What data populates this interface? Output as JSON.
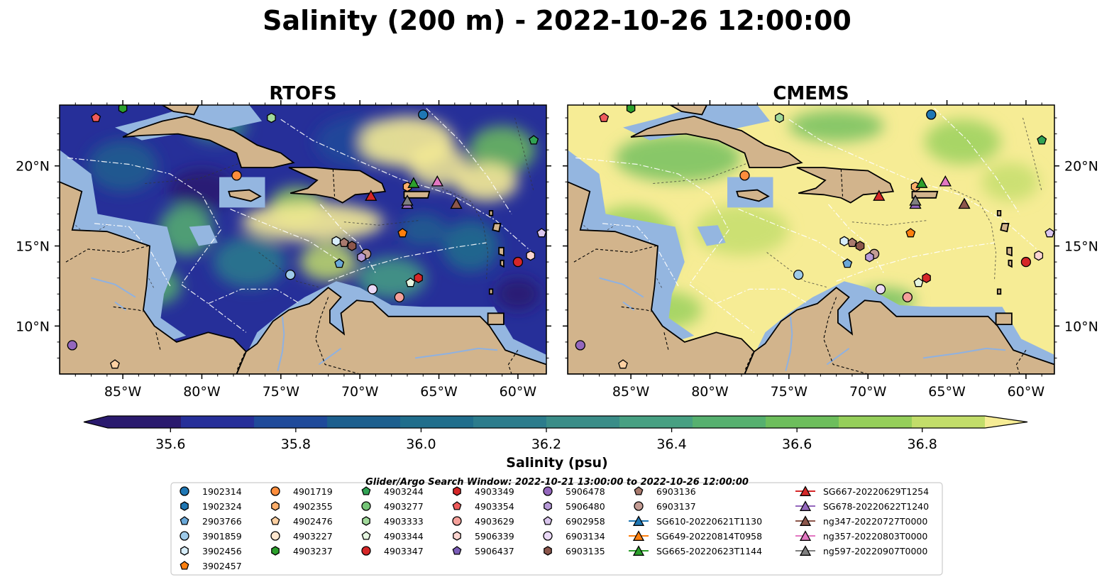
{
  "title": "Salinity (200 m) - 2022-10-26 12:00:00",
  "panels": [
    {
      "name": "RTOFS",
      "variant": "rtofs",
      "left_axis": true
    },
    {
      "name": "CMEMS",
      "variant": "cmems",
      "left_axis": false
    }
  ],
  "map": {
    "lon_labels": [
      "85°W",
      "80°W",
      "75°W",
      "70°W",
      "65°W",
      "60°W"
    ],
    "lon_ticks": [
      -85,
      -80,
      -75,
      -70,
      -65,
      -60
    ],
    "lat_labels": [
      "20°N",
      "15°N",
      "10°N"
    ],
    "lat_ticks": [
      20,
      15,
      10
    ],
    "lon_range": [
      -89,
      -58.2
    ],
    "lat_range": [
      7,
      23.8
    ],
    "colors": {
      "land": "#d2b48c",
      "shelf": "#94b6e0",
      "coast": "#000000"
    }
  },
  "colorbar": {
    "label": "Salinity (psu)",
    "tick_labels": [
      "35.6",
      "35.8",
      "36.0",
      "36.2",
      "36.4",
      "36.6",
      "36.8"
    ],
    "tick_values": [
      35.6,
      35.8,
      36.0,
      36.2,
      36.4,
      36.6,
      36.8
    ],
    "min": 35.5,
    "max": 36.9,
    "colors": [
      "#2a1a6e",
      "#262f99",
      "#1f4a9a",
      "#1c5f8e",
      "#206e8c",
      "#2c7c8c",
      "#3a8d88",
      "#47a082",
      "#56b06f",
      "#6dbe5c",
      "#95cf5a",
      "#c2dd6a",
      "#f6ec95"
    ]
  },
  "search_window": "Glider/Argo Search Window: 2022-10-21 13:00:00 to 2022-10-26 12:00:00",
  "legend": {
    "columns": [
      [
        {
          "label": "1902314",
          "marker": "circle",
          "color": "#1f77b4"
        },
        {
          "label": "1902324",
          "marker": "hexagon",
          "color": "#1f77b4"
        },
        {
          "label": "2903766",
          "marker": "pentagon",
          "color": "#6aa8d8"
        },
        {
          "label": "3901859",
          "marker": "circle",
          "color": "#9ecae9"
        },
        {
          "label": "3902456",
          "marker": "hexagon",
          "color": "#d8eefa"
        },
        {
          "label": "3902457",
          "marker": "pentagon",
          "color": "#ff7f0e"
        }
      ],
      [
        {
          "label": "4901719",
          "marker": "circle",
          "color": "#fd8d3c"
        },
        {
          "label": "4902355",
          "marker": "hexagon",
          "color": "#fdae6b"
        },
        {
          "label": "4902476",
          "marker": "pentagon",
          "color": "#fdd0a2"
        },
        {
          "label": "4903227",
          "marker": "circle",
          "color": "#fee6ce"
        },
        {
          "label": "4903237",
          "marker": "hexagon",
          "color": "#2ca02c"
        }
      ],
      [
        {
          "label": "4903244",
          "marker": "pentagon",
          "color": "#31a354"
        },
        {
          "label": "4903277",
          "marker": "circle",
          "color": "#74c476"
        },
        {
          "label": "4903333",
          "marker": "hexagon",
          "color": "#a1d99b"
        },
        {
          "label": "4903344",
          "marker": "pentagon",
          "color": "#e5f5e0"
        },
        {
          "label": "4903347",
          "marker": "circle",
          "color": "#d62728"
        }
      ],
      [
        {
          "label": "4903349",
          "marker": "hexagon",
          "color": "#d62728"
        },
        {
          "label": "4903354",
          "marker": "pentagon",
          "color": "#ef5b5b"
        },
        {
          "label": "4903629",
          "marker": "circle",
          "color": "#f4a09a"
        },
        {
          "label": "5906339",
          "marker": "hexagon",
          "color": "#fcd5d0"
        },
        {
          "label": "5906437",
          "marker": "pentagon",
          "color": "#7b5db8"
        }
      ],
      [
        {
          "label": "5906478",
          "marker": "circle",
          "color": "#9467bd"
        },
        {
          "label": "5906480",
          "marker": "hexagon",
          "color": "#b79ad8"
        },
        {
          "label": "6902958",
          "marker": "pentagon",
          "color": "#dac6ee"
        },
        {
          "label": "6903134",
          "marker": "circle",
          "color": "#ead9f7"
        },
        {
          "label": "6903135",
          "marker": "hexagon",
          "color": "#8c564b"
        }
      ],
      [
        {
          "label": "6903136",
          "marker": "pentagon",
          "color": "#a97a6e"
        },
        {
          "label": "6903137",
          "marker": "circle",
          "color": "#c49c94"
        },
        {
          "label": "SG610-20220621T1130",
          "marker": "triangle-line",
          "color": "#1f77b4"
        },
        {
          "label": "SG649-20220814T0958",
          "marker": "triangle-line",
          "color": "#ff7f0e"
        },
        {
          "label": "SG665-20220623T1144",
          "marker": "triangle-line",
          "color": "#2ca02c"
        }
      ],
      [
        {
          "label": "SG667-20220629T1254",
          "marker": "triangle-line",
          "color": "#d62728"
        },
        {
          "label": "SG678-20220622T1240",
          "marker": "triangle-line",
          "color": "#9467bd"
        },
        {
          "label": "ng347-20220727T0000",
          "marker": "triangle-line",
          "color": "#8c564b"
        },
        {
          "label": "ng357-20220803T0000",
          "marker": "triangle-line",
          "color": "#e377c2"
        },
        {
          "label": "ng597-20220907T0000",
          "marker": "triangle-line",
          "color": "#7f7f7f"
        }
      ]
    ]
  },
  "observations": [
    {
      "id": "1902314",
      "marker": "circle",
      "color": "#1f77b4",
      "lon": -66.0,
      "lat": 23.2
    },
    {
      "id": "4903237",
      "marker": "hexagon",
      "color": "#2ca02c",
      "lon": -85.0,
      "lat": 23.6
    },
    {
      "id": "4903354",
      "marker": "pentagon",
      "color": "#ef5b5b",
      "lon": -86.7,
      "lat": 23.0
    },
    {
      "id": "4903333",
      "marker": "hexagon",
      "color": "#a1d99b",
      "lon": -75.6,
      "lat": 23.0
    },
    {
      "id": "4903244",
      "marker": "pentagon",
      "color": "#31a354",
      "lon": -59.0,
      "lat": 21.6
    },
    {
      "id": "4901719",
      "marker": "circle",
      "color": "#fd8d3c",
      "lon": -77.8,
      "lat": 19.4
    },
    {
      "id": "4902355",
      "marker": "hexagon",
      "color": "#fdae6b",
      "lon": -67.0,
      "lat": 18.7
    },
    {
      "id": "3902457",
      "marker": "pentagon",
      "color": "#ff7f0e",
      "lon": -67.3,
      "lat": 15.8
    },
    {
      "id": "6903135",
      "marker": "hexagon",
      "color": "#8c564b",
      "lon": -70.5,
      "lat": 15.0
    },
    {
      "id": "6903136",
      "marker": "pentagon",
      "color": "#a97a6e",
      "lon": -71.0,
      "lat": 15.2
    },
    {
      "id": "3902456",
      "marker": "hexagon",
      "color": "#d8eefa",
      "lon": -71.5,
      "lat": 15.3
    },
    {
      "id": "6903137",
      "marker": "circle",
      "color": "#c49c94",
      "lon": -69.6,
      "lat": 14.5
    },
    {
      "id": "5906480",
      "marker": "hexagon",
      "color": "#b79ad8",
      "lon": -69.9,
      "lat": 14.3
    },
    {
      "id": "2903766",
      "marker": "pentagon",
      "color": "#6aa8d8",
      "lon": -71.3,
      "lat": 13.9
    },
    {
      "id": "3901859",
      "marker": "circle",
      "color": "#9ecae9",
      "lon": -74.4,
      "lat": 13.2
    },
    {
      "id": "4903349",
      "marker": "hexagon",
      "color": "#d62728",
      "lon": -66.3,
      "lat": 13.0
    },
    {
      "id": "4903344",
      "marker": "pentagon",
      "color": "#e5f5e0",
      "lon": -66.8,
      "lat": 12.7
    },
    {
      "id": "6903134",
      "marker": "circle",
      "color": "#ead9f7",
      "lon": -69.2,
      "lat": 12.3
    },
    {
      "id": "4903629",
      "marker": "circle",
      "color": "#f4a09a",
      "lon": -67.5,
      "lat": 11.8
    },
    {
      "id": "4903347",
      "marker": "circle",
      "color": "#d62728",
      "lon": -60.0,
      "lat": 14.0
    },
    {
      "id": "5906339",
      "marker": "hexagon",
      "color": "#fcd5d0",
      "lon": -59.2,
      "lat": 14.4
    },
    {
      "id": "6902958",
      "marker": "pentagon",
      "color": "#dac6ee",
      "lon": -58.5,
      "lat": 15.8
    },
    {
      "id": "5906478",
      "marker": "circle",
      "color": "#9467bd",
      "lon": -88.2,
      "lat": 8.8
    },
    {
      "id": "4902476",
      "marker": "pentagon",
      "color": "#fdd0a2",
      "lon": -85.5,
      "lat": 7.6
    },
    {
      "id": "SG667-20220629T1254",
      "marker": "triangle",
      "color": "#d62728",
      "lon": -69.3,
      "lat": 18.1
    },
    {
      "id": "SG665-20220623T1144",
      "marker": "triangle",
      "color": "#2ca02c",
      "lon": -66.6,
      "lat": 18.9
    },
    {
      "id": "ng357-20220803T0000",
      "marker": "triangle",
      "color": "#e377c2",
      "lon": -65.1,
      "lat": 19.0
    },
    {
      "id": "SG678-20220622T1240",
      "marker": "triangle",
      "color": "#9467bd",
      "lon": -67.0,
      "lat": 17.6
    },
    {
      "id": "ng597-20220907T0000",
      "marker": "triangle",
      "color": "#7f7f7f",
      "lon": -67.0,
      "lat": 17.8
    },
    {
      "id": "ng347-20220727T0000",
      "marker": "triangle",
      "color": "#8c564b",
      "lon": -63.9,
      "lat": 17.6
    }
  ]
}
